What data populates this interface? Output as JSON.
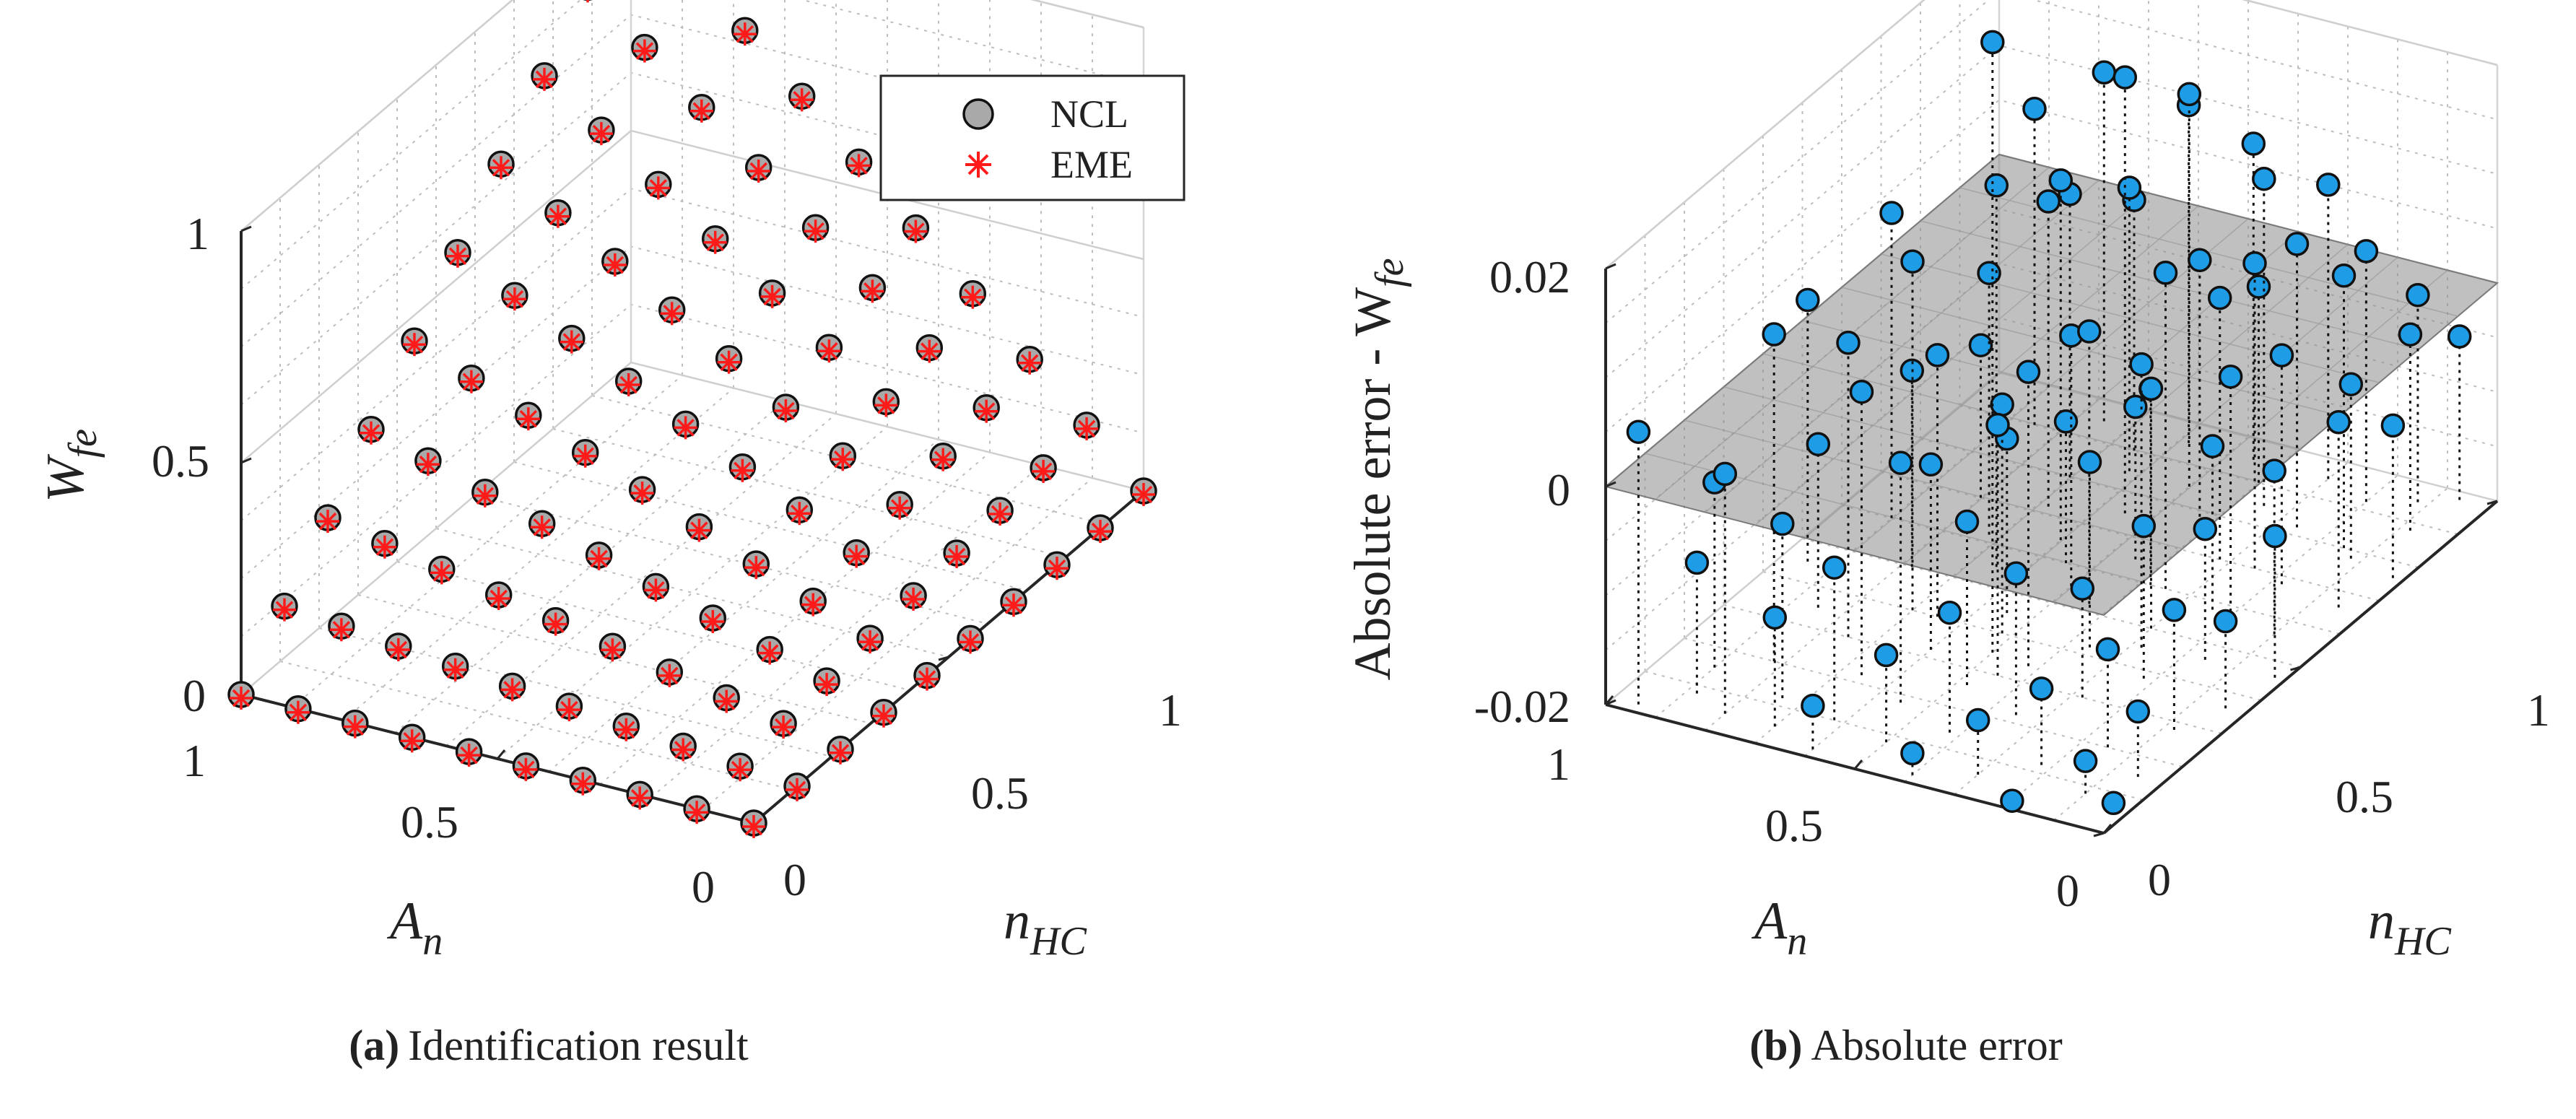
{
  "colors": {
    "ncl_fill": "#a9a9a9",
    "eme_color": "#ff1a1a",
    "error_fill": "#1e9de6",
    "plane_fill": "#8c8c8c",
    "grid": "#bdbdbd",
    "axis": "#262626"
  },
  "chart_data": [
    {
      "type": "scatter3d",
      "panel_label": "(a)",
      "caption": "Identification result",
      "xlabel": "A",
      "xlabel_sub": "n",
      "ylabel": "n",
      "ylabel_sub": "HC",
      "zlabel": "W",
      "zlabel_sub": "fe",
      "xlim": [
        0,
        1
      ],
      "ylim": [
        0,
        1
      ],
      "zlim": [
        0,
        1
      ],
      "xticks": [
        "0",
        "0.5",
        "1"
      ],
      "yticks": [
        "0",
        "0.5",
        "1"
      ],
      "zticks": [
        "0",
        "0.5",
        "1"
      ],
      "legend": {
        "location": "top-right",
        "entries": [
          "NCL",
          "EME"
        ]
      },
      "grid": true,
      "series": [
        {
          "name": "NCL",
          "marker": "circle",
          "surface": "W = A·n, 10×10 grid over A_n and n_HC in [0,1]"
        },
        {
          "name": "EME",
          "marker": "asterisk",
          "surface": "W = A·n, 10×10 grid over A_n and n_HC in [0,1]"
        }
      ],
      "grid_points": 10
    },
    {
      "type": "stem3d",
      "panel_label": "(b)",
      "caption": "Absolute error",
      "xlabel": "A",
      "xlabel_sub": "n",
      "ylabel": "n",
      "ylabel_sub": "HC",
      "zlabel": "Absolute error - W",
      "zlabel_sub": "fe",
      "xlim": [
        0,
        1
      ],
      "ylim": [
        0,
        1
      ],
      "zlim": [
        -0.02,
        0.02
      ],
      "xticks": [
        "0",
        "0.5",
        "1"
      ],
      "yticks": [
        "0",
        "0.5",
        "1"
      ],
      "zticks": [
        "-0.02",
        "0",
        "0.02"
      ],
      "grid": true,
      "reference_plane_z": 0,
      "points": [
        {
          "a": 0.95,
          "n": 0.02,
          "e": 0.005
        },
        {
          "a": 0.88,
          "n": 0.08,
          "e": -0.008
        },
        {
          "a": 0.82,
          "n": 0.2,
          "e": 0.01
        },
        {
          "a": 0.75,
          "n": 0.3,
          "e": 0.007
        },
        {
          "a": 0.7,
          "n": 0.4,
          "e": 0.012
        },
        {
          "a": 0.65,
          "n": 0.55,
          "e": 0.015
        },
        {
          "a": 0.6,
          "n": 0.65,
          "e": 0.013
        },
        {
          "a": 0.55,
          "n": 0.75,
          "e": 0.02
        },
        {
          "a": 0.5,
          "n": 0.85,
          "e": 0.016
        },
        {
          "a": 0.45,
          "n": 0.95,
          "e": 0.009
        },
        {
          "a": 0.9,
          "n": 0.15,
          "e": -0.003
        },
        {
          "a": 0.85,
          "n": 0.35,
          "e": -0.005
        },
        {
          "a": 0.78,
          "n": 0.5,
          "e": -0.002
        },
        {
          "a": 0.72,
          "n": 0.62,
          "e": 0.004
        },
        {
          "a": 0.68,
          "n": 0.72,
          "e": 0.008
        },
        {
          "a": 0.62,
          "n": 0.85,
          "e": 0.006
        },
        {
          "a": 0.58,
          "n": 0.95,
          "e": 0.011
        },
        {
          "a": 0.55,
          "n": 0.45,
          "e": -0.004
        },
        {
          "a": 0.5,
          "n": 0.55,
          "e": 0.003
        },
        {
          "a": 0.45,
          "n": 0.65,
          "e": -0.006
        },
        {
          "a": 0.4,
          "n": 0.75,
          "e": 0.005
        },
        {
          "a": 0.35,
          "n": 0.85,
          "e": 0.01
        },
        {
          "a": 0.3,
          "n": 0.95,
          "e": 0.007
        },
        {
          "a": 0.8,
          "n": 0.05,
          "e": 0.002
        },
        {
          "a": 0.74,
          "n": 0.12,
          "e": -0.004
        },
        {
          "a": 0.66,
          "n": 0.22,
          "e": 0.006
        },
        {
          "a": 0.6,
          "n": 0.32,
          "e": -0.003
        },
        {
          "a": 0.52,
          "n": 0.4,
          "e": 0.001
        },
        {
          "a": 0.44,
          "n": 0.52,
          "e": 0.005
        },
        {
          "a": 0.38,
          "n": 0.6,
          "e": -0.002
        },
        {
          "a": 0.32,
          "n": 0.7,
          "e": 0.004
        },
        {
          "a": 0.26,
          "n": 0.82,
          "e": 0.006
        },
        {
          "a": 0.2,
          "n": 0.92,
          "e": 0.003
        },
        {
          "a": 0.7,
          "n": 0.05,
          "e": -0.01
        },
        {
          "a": 0.62,
          "n": 0.1,
          "e": -0.006
        },
        {
          "a": 0.55,
          "n": 0.18,
          "e": 0.002
        },
        {
          "a": 0.48,
          "n": 0.26,
          "e": -0.005
        },
        {
          "a": 0.42,
          "n": 0.34,
          "e": 0.007
        },
        {
          "a": 0.36,
          "n": 0.42,
          "e": -0.003
        },
        {
          "a": 0.3,
          "n": 0.5,
          "e": 0.002
        },
        {
          "a": 0.24,
          "n": 0.58,
          "e": -0.005
        },
        {
          "a": 0.18,
          "n": 0.68,
          "e": 0.001
        },
        {
          "a": 0.12,
          "n": 0.78,
          "e": -0.004
        },
        {
          "a": 0.08,
          "n": 0.88,
          "e": -0.002
        },
        {
          "a": 0.6,
          "n": 0.02,
          "e": -0.016
        },
        {
          "a": 0.5,
          "n": 0.08,
          "e": -0.012
        },
        {
          "a": 0.42,
          "n": 0.14,
          "e": -0.009
        },
        {
          "a": 0.35,
          "n": 0.22,
          "e": -0.007
        },
        {
          "a": 0.28,
          "n": 0.3,
          "e": -0.01
        },
        {
          "a": 0.22,
          "n": 0.38,
          "e": -0.006
        },
        {
          "a": 0.16,
          "n": 0.46,
          "e": -0.008
        },
        {
          "a": 0.1,
          "n": 0.56,
          "e": -0.005
        },
        {
          "a": 0.05,
          "n": 0.66,
          "e": -0.003
        },
        {
          "a": 0.02,
          "n": 0.76,
          "e": -0.006
        },
        {
          "a": 0.4,
          "n": 0.02,
          "e": -0.018
        },
        {
          "a": 0.3,
          "n": 0.06,
          "e": -0.015
        },
        {
          "a": 0.22,
          "n": 0.12,
          "e": -0.013
        },
        {
          "a": 0.15,
          "n": 0.2,
          "e": -0.011
        },
        {
          "a": 0.08,
          "n": 0.28,
          "e": -0.009
        },
        {
          "a": 0.04,
          "n": 0.36,
          "e": -0.012
        },
        {
          "a": 0.02,
          "n": 0.46,
          "e": -0.007
        },
        {
          "a": 0.2,
          "n": 0.02,
          "e": -0.02
        },
        {
          "a": 0.1,
          "n": 0.08,
          "e": -0.017
        },
        {
          "a": 0.05,
          "n": 0.15,
          "e": -0.014
        },
        {
          "a": 0.02,
          "n": 0.05,
          "e": -0.019
        },
        {
          "a": 0.45,
          "n": 0.3,
          "e": 0.003
        },
        {
          "a": 0.5,
          "n": 0.35,
          "e": 0.036
        },
        {
          "a": 0.65,
          "n": 0.4,
          "e": 0.004
        },
        {
          "a": 0.35,
          "n": 0.6,
          "e": 0.009
        },
        {
          "a": 0.25,
          "n": 0.7,
          "e": 0.008
        },
        {
          "a": 0.15,
          "n": 0.8,
          "e": 0.005
        },
        {
          "a": 0.7,
          "n": 0.8,
          "e": 0.006
        },
        {
          "a": 0.8,
          "n": 0.7,
          "e": -0.006
        },
        {
          "a": 0.9,
          "n": 0.6,
          "e": 0.008
        },
        {
          "a": 0.95,
          "n": 0.45,
          "e": 0.004
        },
        {
          "a": 0.85,
          "n": 0.9,
          "e": 0.009
        },
        {
          "a": 0.4,
          "n": 0.9,
          "e": -0.002
        },
        {
          "a": 0.65,
          "n": 0.9,
          "e": 0.003
        },
        {
          "a": 0.75,
          "n": 0.95,
          "e": 0.012
        },
        {
          "a": 0.55,
          "n": 0.6,
          "e": -0.007
        },
        {
          "a": 0.28,
          "n": 0.45,
          "e": 0.006
        },
        {
          "a": 0.18,
          "n": 0.55,
          "e": 0.003
        },
        {
          "a": 0.12,
          "n": 0.95,
          "e": -0.001
        },
        {
          "a": 0.06,
          "n": 0.98,
          "e": -0.005
        }
      ]
    }
  ]
}
